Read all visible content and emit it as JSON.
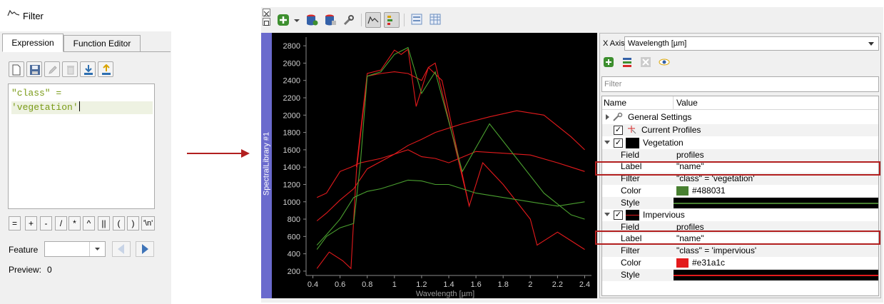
{
  "filter_dialog": {
    "title": "Filter",
    "tabs": [
      "Expression",
      "Function Editor"
    ],
    "expression_lines": [
      "\"class\" =",
      "'vegetation'"
    ],
    "operators": [
      "=",
      "+",
      "-",
      "/",
      "*",
      "^",
      "||",
      "(",
      ")",
      "'\\n'"
    ],
    "feature_label": "Feature",
    "preview_label": "Preview:",
    "preview_value": "0"
  },
  "spectral_library": {
    "panel_title": "SpectralLibrary #1",
    "x_axis_label": "X Axis",
    "x_axis_value": "Wavelength [µm]",
    "filter_placeholder": "Filter",
    "tree_columns": [
      "Name",
      "Value"
    ],
    "general_settings": "General Settings",
    "current_profiles": "Current Profiles",
    "vegetation": {
      "name": "Vegetation",
      "rows": [
        {
          "key": "Field",
          "value": "profiles"
        },
        {
          "key": "Label",
          "value": "\"name\""
        },
        {
          "key": "Filter",
          "value": "\"class\" = 'vegetation'"
        },
        {
          "key": "Color",
          "value": "#488031"
        },
        {
          "key": "Style",
          "value": ""
        }
      ],
      "color": "#488031"
    },
    "impervious": {
      "name": "Impervious",
      "rows": [
        {
          "key": "Field",
          "value": "profiles"
        },
        {
          "key": "Label",
          "value": "\"name\""
        },
        {
          "key": "Filter",
          "value": "\"class\" = 'impervious'"
        },
        {
          "key": "Color",
          "value": "#e31a1c"
        },
        {
          "key": "Style",
          "value": ""
        }
      ],
      "color": "#e31a1c"
    }
  },
  "chart_data": {
    "type": "line",
    "xlabel": "Wavelength [µm]",
    "ylabel": "",
    "xlim": [
      0.35,
      2.45
    ],
    "ylim": [
      150,
      2900
    ],
    "xticks": [
      "0.4",
      "0.6",
      "0.8",
      "1",
      "1.2",
      "1.4",
      "1.6",
      "1.8",
      "2",
      "2.2",
      "2.4"
    ],
    "yticks": [
      "200",
      "400",
      "600",
      "800",
      "1000",
      "1200",
      "1400",
      "1600",
      "1800",
      "2000",
      "2200",
      "2400",
      "2600",
      "2800"
    ],
    "series": [
      {
        "color": "#e31a1c",
        "x": [
          0.43,
          0.5,
          0.6,
          0.68,
          0.75,
          0.9,
          1.0,
          1.1,
          1.2,
          1.3,
          1.5,
          1.7,
          1.9,
          2.1,
          2.3,
          2.4
        ],
        "y": [
          1050,
          1100,
          1350,
          1400,
          1450,
          1500,
          1550,
          1650,
          1720,
          1800,
          1900,
          1980,
          2050,
          2000,
          1750,
          1600
        ]
      },
      {
        "color": "#e31a1c",
        "x": [
          0.43,
          0.5,
          0.6,
          0.7,
          0.8,
          1.0,
          1.1,
          1.2,
          1.3,
          1.4,
          1.6,
          1.8,
          2.0,
          2.2,
          2.3,
          2.4
        ],
        "y": [
          780,
          870,
          1020,
          1150,
          1380,
          1550,
          1600,
          1520,
          1500,
          1450,
          1580,
          1560,
          1540,
          1450,
          1400,
          1350
        ]
      },
      {
        "color": "#e31a1c",
        "x": [
          0.43,
          0.52,
          0.62,
          0.68,
          0.72,
          0.8,
          0.9,
          1.0,
          1.1,
          1.2,
          1.25,
          1.35,
          1.55,
          1.65,
          1.8,
          2.0,
          2.05,
          2.2,
          2.3,
          2.4
        ],
        "y": [
          230,
          420,
          320,
          230,
          1350,
          2450,
          2480,
          2500,
          2480,
          2400,
          2550,
          2400,
          950,
          1450,
          1200,
          800,
          500,
          650,
          550,
          450
        ]
      },
      {
        "color": "#e31a1c",
        "x": [
          0.72,
          0.8,
          0.9,
          1.0,
          1.05,
          1.1,
          1.16,
          1.25,
          1.3,
          1.55
        ],
        "y": [
          1400,
          2480,
          2520,
          2750,
          2700,
          2760,
          2100,
          2550,
          2600,
          950
        ]
      },
      {
        "color": "#4a9f2f",
        "x": [
          0.43,
          0.5,
          0.6,
          0.7,
          0.75,
          0.8,
          0.9,
          1.0,
          1.1,
          1.2,
          1.3,
          1.5,
          1.7,
          1.9,
          2.1,
          2.3,
          2.4
        ],
        "y": [
          450,
          600,
          700,
          750,
          1450,
          2450,
          2500,
          2700,
          2780,
          2250,
          2500,
          1350,
          1900,
          1500,
          1100,
          850,
          800
        ]
      },
      {
        "color": "#4a9f2f",
        "x": [
          0.43,
          0.5,
          0.6,
          0.7,
          0.8,
          0.9,
          1.0,
          1.1,
          1.2,
          1.3,
          1.4,
          1.6,
          1.8,
          2.0,
          2.2,
          2.4
        ],
        "y": [
          500,
          620,
          800,
          1050,
          1120,
          1150,
          1200,
          1250,
          1240,
          1200,
          1200,
          1100,
          1050,
          1000,
          950,
          1000
        ]
      }
    ]
  }
}
